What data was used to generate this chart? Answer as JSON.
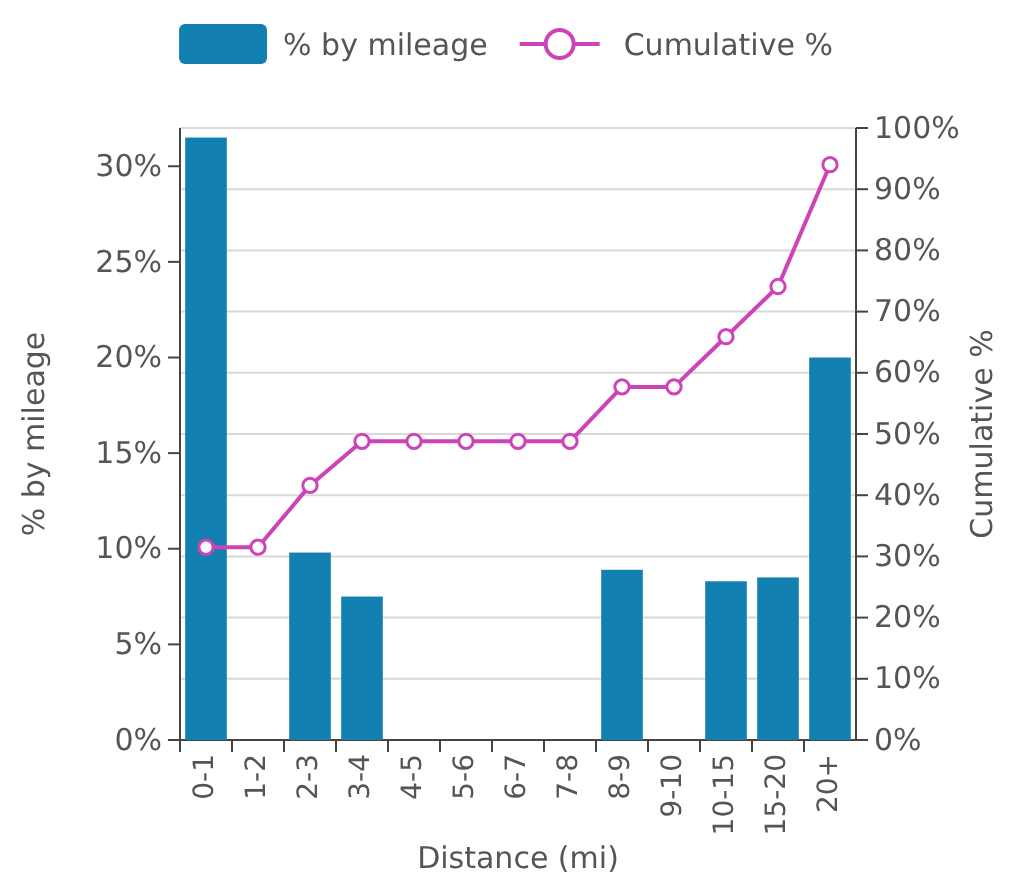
{
  "chart_data": {
    "type": "bar",
    "xlabel": "Distance (mi)",
    "ylabel": "% by mileage",
    "y2label": "Cumulative %",
    "categories": [
      "0-1",
      "1-2",
      "2-3",
      "3-4",
      "4-5",
      "5-6",
      "6-7",
      "7-8",
      "8-9",
      "9-10",
      "10-15",
      "15-20",
      "20+"
    ],
    "series": [
      {
        "name": "% by mileage",
        "color": "#1280b0",
        "values": [
          31.5,
          0,
          9.8,
          7.5,
          0,
          0,
          0,
          0,
          8.9,
          0,
          8.3,
          8.5,
          20.0
        ]
      },
      {
        "name": "Cumulative %",
        "type": "line",
        "axis": "y2",
        "color": "#cc44b8",
        "marker": "circle",
        "values": [
          31.5,
          31.5,
          41.6,
          48.8,
          48.8,
          48.8,
          48.8,
          48.8,
          57.7,
          57.7,
          65.9,
          74.1,
          94.0
        ]
      }
    ],
    "ylim": [
      0,
      32
    ],
    "yticks": [
      {
        "value": 0,
        "label": "0%"
      },
      {
        "value": 5,
        "label": "5%"
      },
      {
        "value": 10,
        "label": "10%"
      },
      {
        "value": 15,
        "label": "15%"
      },
      {
        "value": 20,
        "label": "20%"
      },
      {
        "value": 25,
        "label": "25%"
      },
      {
        "value": 30,
        "label": "30%"
      }
    ],
    "y2lim": [
      0,
      100
    ],
    "y2ticks": [
      {
        "value": 0,
        "label": "0%"
      },
      {
        "value": 10,
        "label": "10%"
      },
      {
        "value": 20,
        "label": "20%"
      },
      {
        "value": 30,
        "label": "30%"
      },
      {
        "value": 40,
        "label": "40%"
      },
      {
        "value": 50,
        "label": "50%"
      },
      {
        "value": 60,
        "label": "60%"
      },
      {
        "value": 70,
        "label": "70%"
      },
      {
        "value": 80,
        "label": "80%"
      },
      {
        "value": 90,
        "label": "90%"
      },
      {
        "value": 100,
        "label": "100%"
      }
    ],
    "grid": true,
    "legend": "top"
  }
}
